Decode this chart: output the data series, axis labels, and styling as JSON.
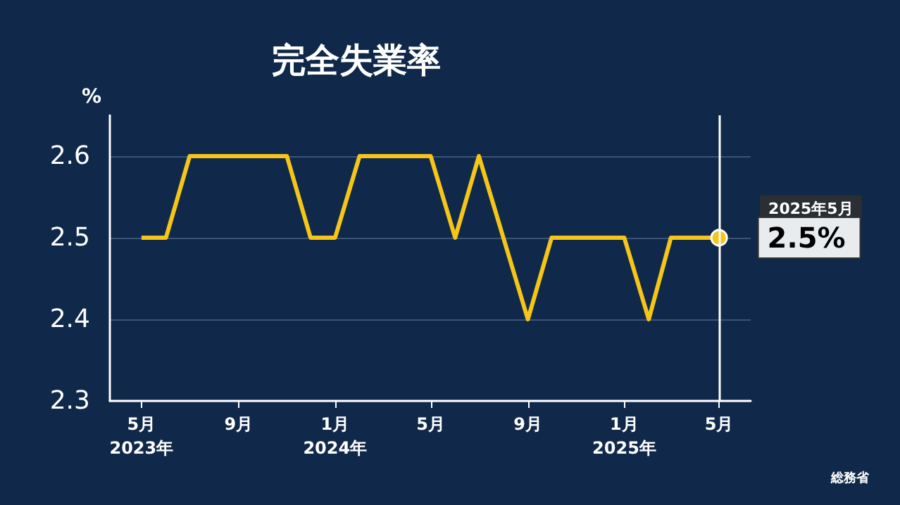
{
  "chart_data": {
    "type": "line",
    "title": "完全失業率",
    "ylabel": "%",
    "x": [
      "2023-05",
      "2023-06",
      "2023-07",
      "2023-08",
      "2023-09",
      "2023-10",
      "2023-11",
      "2023-12",
      "2024-01",
      "2024-02",
      "2024-03",
      "2024-04",
      "2024-05",
      "2024-06",
      "2024-07",
      "2024-08",
      "2024-09",
      "2024-10",
      "2024-11",
      "2024-12",
      "2025-01",
      "2025-02",
      "2025-03",
      "2025-04",
      "2025-05"
    ],
    "series": [
      {
        "color": "#f5c518",
        "values": [
          2.5,
          2.5,
          2.6,
          2.6,
          2.6,
          2.6,
          2.6,
          2.5,
          2.5,
          2.6,
          2.6,
          2.6,
          2.6,
          2.5,
          2.6,
          2.5,
          2.4,
          2.5,
          2.5,
          2.5,
          2.5,
          2.4,
          2.5,
          2.5,
          2.5
        ],
        "value_labels": [
          null,
          null,
          null,
          null,
          null,
          null,
          null,
          null,
          null,
          null,
          null,
          null,
          null,
          null,
          null,
          null,
          null,
          null,
          null,
          null,
          null,
          null,
          null,
          null,
          "2.5%"
        ]
      }
    ],
    "xlim": [
      "2023-03-22",
      "2025-06-10"
    ],
    "xticks": [
      {
        "value": "2023-05",
        "label": "5月\n2023年"
      },
      {
        "value": "2023-09",
        "label": "9月"
      },
      {
        "value": "2024-01",
        "label": "1月\n2024年"
      },
      {
        "value": "2024-05",
        "label": "5月"
      },
      {
        "value": "2024-09",
        "label": "9月"
      },
      {
        "value": "2025-01",
        "label": "1月\n2025年"
      },
      {
        "value": "2025-05",
        "label": "5月"
      }
    ],
    "ylim": [
      2.3,
      2.65
    ],
    "yticks": [
      2.3,
      2.4,
      2.5,
      2.6
    ],
    "grid": "y",
    "ref_lines": [
      {
        "axis": "x",
        "value": "2025-05",
        "color": "#ffffff"
      }
    ],
    "annotations": [
      "2025年5月",
      "総務省"
    ]
  }
}
